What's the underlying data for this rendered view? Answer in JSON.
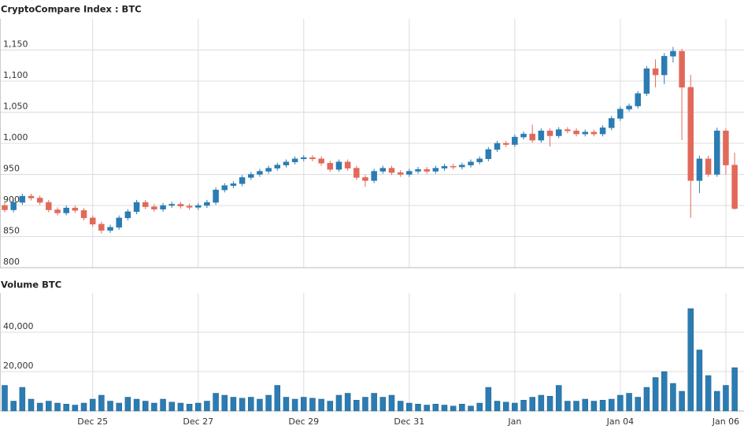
{
  "chart_data": [
    {
      "type": "candlestick",
      "title": "CryptoCompare Index : BTC",
      "up_color": "#2b7cb3",
      "down_color": "#e2695a",
      "grid": true,
      "ylim": [
        800,
        1200
      ],
      "yticks": [
        800,
        850,
        900,
        950,
        {
          "value": 1000,
          "label": "1,000"
        },
        {
          "value": 1050,
          "label": "1,050"
        },
        {
          "value": 1100,
          "label": "1,100"
        },
        {
          "value": 1150,
          "label": "1,150"
        }
      ],
      "open": [
        900,
        893,
        905,
        915,
        912,
        905,
        893,
        888,
        896,
        892,
        880,
        870,
        860,
        865,
        880,
        890,
        905,
        898,
        894,
        900,
        902,
        899,
        897,
        900,
        905,
        925,
        932,
        935,
        945,
        950,
        955,
        960,
        965,
        970,
        975,
        977,
        975,
        968,
        958,
        970,
        960,
        945,
        940,
        955,
        960,
        953,
        950,
        955,
        958,
        955,
        960,
        963,
        962,
        965,
        970,
        975,
        990,
        1000,
        998,
        1010,
        1015,
        1005,
        1020,
        1012,
        1022,
        1020,
        1015,
        1018,
        1015,
        1025,
        1040,
        1055,
        1060,
        1080,
        1120,
        1110,
        1140,
        1148,
        1090,
        940,
        975,
        950,
        1020,
        965
      ],
      "high": [
        904,
        909,
        919,
        919,
        916,
        909,
        897,
        900,
        900,
        896,
        884,
        874,
        869,
        884,
        894,
        909,
        909,
        902,
        904,
        906,
        906,
        903,
        904,
        909,
        929,
        936,
        939,
        949,
        954,
        959,
        964,
        969,
        974,
        979,
        981,
        981,
        979,
        972,
        974,
        974,
        964,
        949,
        959,
        964,
        964,
        957,
        959,
        962,
        962,
        964,
        967,
        967,
        969,
        974,
        979,
        994,
        1004,
        1004,
        1014,
        1019,
        1030,
        1024,
        1024,
        1026,
        1026,
        1024,
        1022,
        1022,
        1029,
        1044,
        1059,
        1064,
        1084,
        1124,
        1135,
        1145,
        1155,
        1152,
        1110,
        980,
        980,
        1025,
        1024,
        985
      ],
      "low": [
        889,
        889,
        901,
        908,
        901,
        889,
        884,
        884,
        888,
        876,
        866,
        855,
        856,
        861,
        876,
        886,
        894,
        890,
        890,
        896,
        895,
        893,
        893,
        896,
        901,
        921,
        928,
        931,
        941,
        946,
        951,
        956,
        961,
        966,
        971,
        971,
        964,
        954,
        954,
        956,
        941,
        930,
        936,
        951,
        949,
        946,
        946,
        951,
        951,
        951,
        956,
        958,
        958,
        961,
        966,
        971,
        986,
        994,
        994,
        1006,
        1001,
        1001,
        995,
        1008,
        1016,
        1011,
        1011,
        1011,
        1011,
        1021,
        1036,
        1051,
        1056,
        1076,
        1090,
        1095,
        1130,
        1005,
        880,
        920,
        946,
        946,
        950,
        893
      ],
      "close": [
        893,
        905,
        915,
        912,
        905,
        893,
        888,
        896,
        892,
        880,
        870,
        860,
        865,
        880,
        890,
        905,
        898,
        894,
        900,
        902,
        899,
        897,
        900,
        905,
        925,
        932,
        935,
        945,
        950,
        955,
        960,
        965,
        970,
        975,
        977,
        975,
        968,
        958,
        970,
        960,
        945,
        940,
        955,
        960,
        953,
        950,
        955,
        958,
        955,
        960,
        963,
        962,
        965,
        970,
        975,
        990,
        1000,
        998,
        1010,
        1015,
        1005,
        1020,
        1012,
        1022,
        1020,
        1015,
        1018,
        1015,
        1025,
        1040,
        1055,
        1060,
        1080,
        1120,
        1110,
        1140,
        1148,
        1090,
        940,
        975,
        950,
        1020,
        965,
        895
      ]
    },
    {
      "type": "bar",
      "title": "Volume BTC",
      "color": "#2b7cb3",
      "grid": true,
      "ylim": [
        0,
        60000
      ],
      "yticks": [
        {
          "value": 20000,
          "label": "20,000"
        },
        {
          "value": 40000,
          "label": "40,000"
        }
      ],
      "categories": [
        null,
        null,
        null,
        null,
        null,
        null,
        null,
        null,
        null,
        null,
        "Dec 25",
        null,
        null,
        null,
        null,
        null,
        null,
        null,
        null,
        null,
        null,
        null,
        "Dec 27",
        null,
        null,
        null,
        null,
        null,
        null,
        null,
        null,
        null,
        null,
        null,
        "Dec 29",
        null,
        null,
        null,
        null,
        null,
        null,
        null,
        null,
        null,
        null,
        null,
        "Dec 31",
        null,
        null,
        null,
        null,
        null,
        null,
        null,
        null,
        null,
        null,
        null,
        "Jan",
        null,
        null,
        null,
        null,
        null,
        null,
        null,
        null,
        null,
        null,
        null,
        "Jan 04",
        null,
        null,
        null,
        null,
        null,
        null,
        null,
        null,
        null,
        null,
        null,
        "Jan 06",
        null
      ],
      "values": [
        13000,
        5000,
        12000,
        6000,
        4000,
        5000,
        4000,
        3500,
        3000,
        4000,
        6000,
        8000,
        5000,
        4000,
        7000,
        6000,
        5000,
        4000,
        6000,
        4500,
        4000,
        3500,
        4000,
        5000,
        9000,
        8000,
        7000,
        6500,
        7000,
        6000,
        8000,
        13000,
        7000,
        6000,
        7000,
        6500,
        6000,
        5000,
        8000,
        9000,
        5500,
        7000,
        9000,
        7000,
        8000,
        5000,
        4000,
        3500,
        3000,
        3500,
        3000,
        2500,
        3500,
        2500,
        4000,
        12000,
        5000,
        4500,
        4000,
        5500,
        7000,
        8000,
        7500,
        13000,
        5000,
        5000,
        6000,
        5000,
        5500,
        6000,
        8000,
        9000,
        7000,
        12000,
        17000,
        20000,
        14000,
        10000,
        52000,
        31000,
        18000,
        10000,
        13000,
        22000
      ]
    }
  ]
}
